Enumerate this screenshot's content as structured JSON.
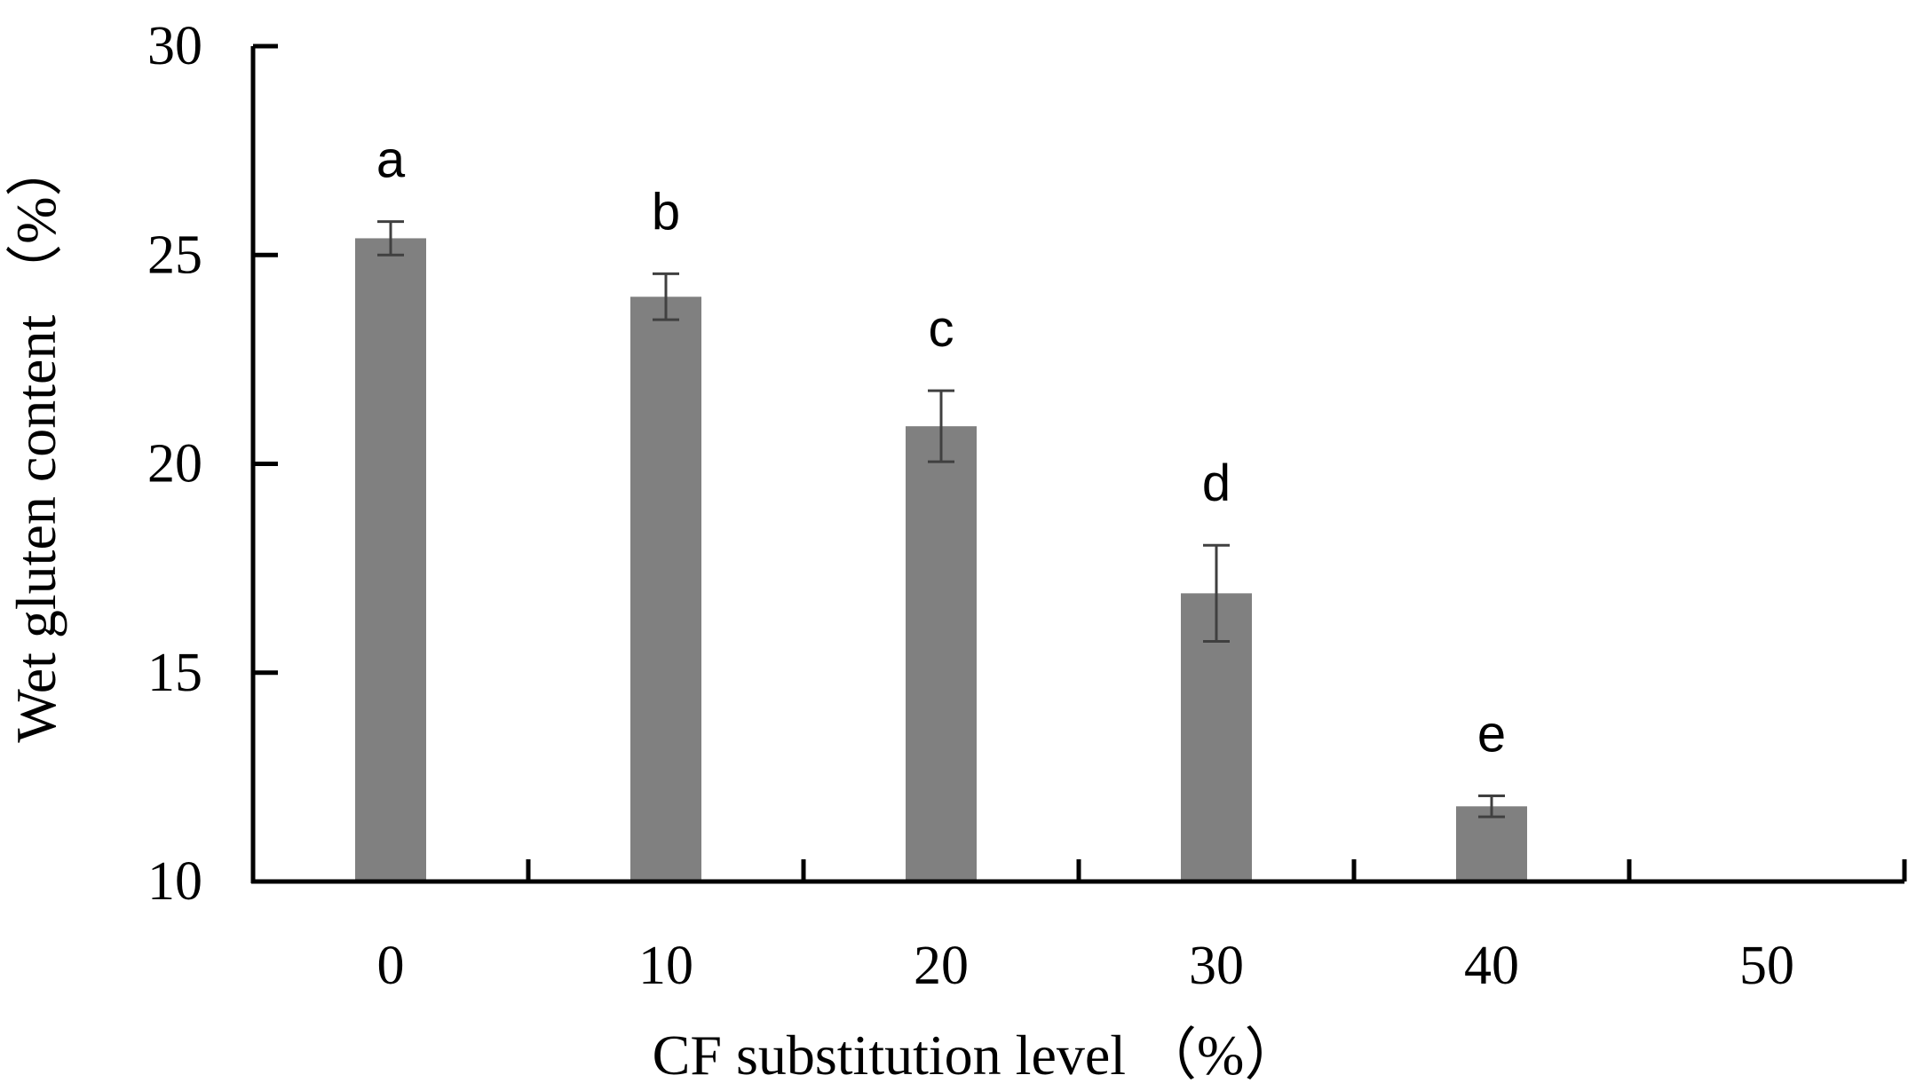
{
  "chart_data": {
    "type": "bar",
    "categories": [
      "0",
      "10",
      "20",
      "30",
      "40",
      "50"
    ],
    "values": [
      25.4,
      24.0,
      20.9,
      16.9,
      11.8,
      null
    ],
    "errors": [
      0.4,
      0.55,
      0.85,
      1.15,
      0.25,
      null
    ],
    "significance_labels": [
      "a",
      "b",
      "c",
      "d",
      "e",
      ""
    ],
    "title": "",
    "xlabel": "CF substitution level （%）",
    "ylabel": "Wet gluten content （%）",
    "ylim": [
      10,
      30
    ],
    "yticks": [
      10,
      15,
      20,
      25,
      30
    ],
    "grid": false,
    "bar_color": "#808080",
    "error_color": "#404040",
    "axis_color": "#000000"
  }
}
